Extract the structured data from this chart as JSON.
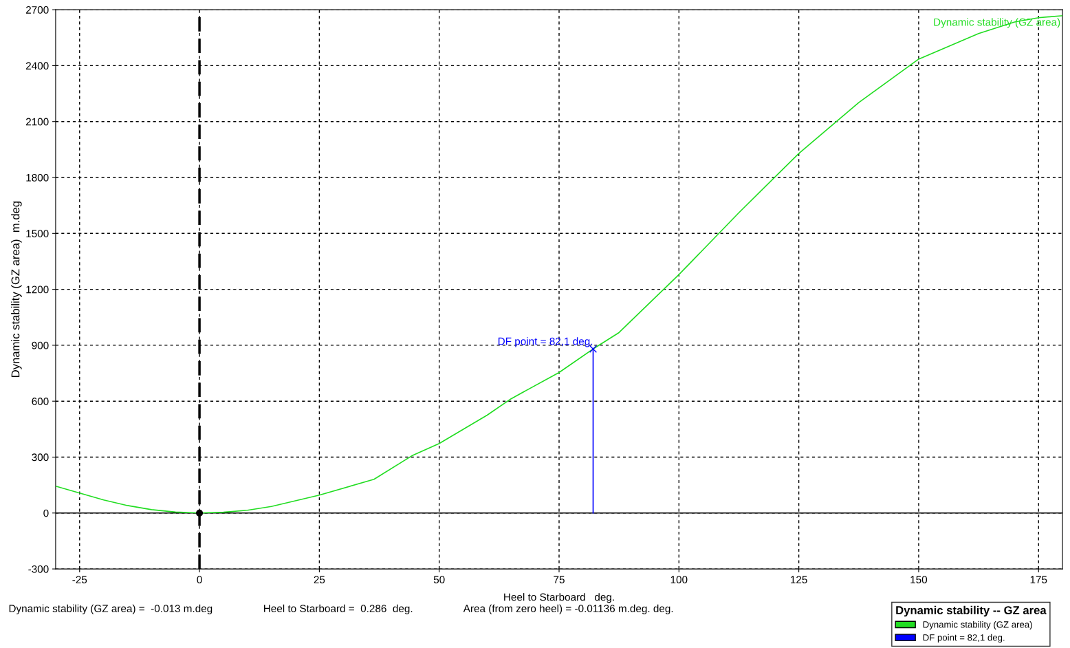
{
  "chart_data": {
    "type": "line",
    "xlabel": "Heel to Starboard   deg.",
    "ylabel": "Dynamic stability (GZ area)  m.deg",
    "legend_title": "Dynamic stability -- GZ area",
    "xlim": [
      -30,
      180
    ],
    "xticks": [
      -25,
      0,
      25,
      50,
      75,
      100,
      125,
      150,
      175
    ],
    "ylim": [
      -300,
      2700
    ],
    "yticks": [
      -300,
      0,
      300,
      600,
      900,
      1200,
      1500,
      1800,
      2100,
      2400,
      2700
    ],
    "grid": true,
    "legend": "bottom right",
    "series": [
      {
        "name": "Dynamic stability (GZ area)",
        "color": "#22dd22",
        "marker": "none",
        "x": [
          -30,
          -25,
          -20,
          -15,
          -10,
          -5,
          0,
          5,
          10,
          15,
          25,
          36.4,
          44.3,
          50,
          60,
          65,
          75,
          82.1,
          87.5,
          100,
          112.5,
          125,
          137.5,
          150,
          162.5,
          170,
          175,
          180
        ],
        "values": [
          144,
          107,
          70,
          40,
          18,
          5,
          0,
          4,
          15,
          35,
          96,
          181,
          307,
          373,
          525,
          613,
          754,
          880,
          968,
          1279,
          1611,
          1929,
          2202,
          2435,
          2572,
          2634,
          2657,
          2668
        ]
      },
      {
        "name": "DF point = 82,1 deg.",
        "color": "#0000ff",
        "marker": "cross",
        "x": [
          82.1,
          82.1
        ],
        "values": [
          0,
          880
        ]
      },
      {
        "type": "scatter",
        "color": "#000000",
        "marker": "circle",
        "x": [
          0
        ],
        "values": [
          0
        ]
      }
    ],
    "ref_lines": [
      {
        "axis": "x",
        "value": 0,
        "color": "#000000",
        "line_style": "dashed"
      },
      {
        "axis": "y",
        "value": 0,
        "color": "#000000",
        "line_style": "solid"
      }
    ],
    "annotations": [
      {
        "text": "DF point = 82,1 deg.",
        "x": 82.1,
        "y": 880
      },
      "Dynamic stability (GZ area) =  -0.013 m.deg",
      "Heel to Starboard =  0.286  deg.",
      "Area (from zero heel) = -0.01136 m.deg. deg."
    ]
  }
}
